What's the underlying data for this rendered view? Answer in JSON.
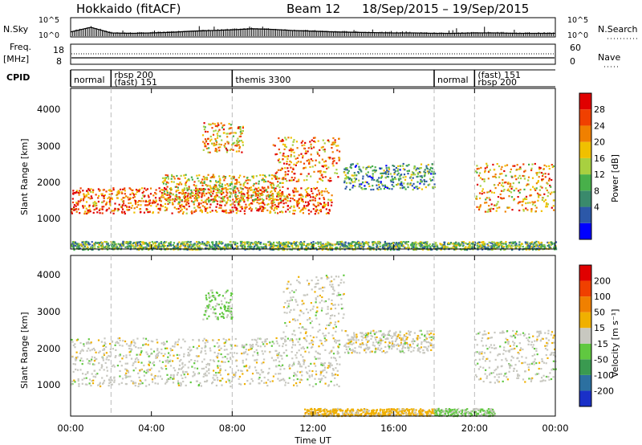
{
  "header": {
    "site": "Hokkaido (fitACF)",
    "beam": "Beam 12",
    "date_range": "18/Sep/2015 – 19/Sep/2015"
  },
  "noise_panel": {
    "left_label": "N.Sky",
    "right_label": "N.Search",
    "left_ticks": [
      "10^5",
      "10^0"
    ],
    "right_ticks": [
      "10^5",
      "10^0"
    ]
  },
  "freq_panel": {
    "left_label_1": "Freq.",
    "left_label_2": "[MHz]",
    "right_label": "Nave",
    "left_ticks": [
      "18",
      "8"
    ],
    "right_ticks": [
      "60",
      "0"
    ]
  },
  "cpid_panel": {
    "label": "CPID",
    "programs": [
      {
        "start_h": 0.0,
        "end_h": 2.0,
        "lines": [
          "normal"
        ]
      },
      {
        "start_h": 2.0,
        "end_h": 8.0,
        "lines": [
          "rbsp 200",
          "(fast) 151"
        ]
      },
      {
        "start_h": 8.0,
        "end_h": 18.0,
        "lines": [
          "themis 3300"
        ]
      },
      {
        "start_h": 18.0,
        "end_h": 20.0,
        "lines": [
          "normal"
        ]
      },
      {
        "start_h": 20.0,
        "end_h": 24.0,
        "lines": [
          "(fast) 151",
          "rbsp 200"
        ]
      }
    ]
  },
  "power_panel": {
    "ylabel": "Slant Range [km]",
    "yticks": [
      "1000",
      "2000",
      "3000",
      "4000"
    ],
    "colorbar_label": "Power [dB]",
    "colorbar_ticks": [
      "28",
      "24",
      "20",
      "16",
      "12",
      "8",
      "4"
    ],
    "colors": [
      "#0000ff",
      "#2c58a8",
      "#3a8a6c",
      "#48b04a",
      "#a8d040",
      "#f0c000",
      "#f08000",
      "#f04000",
      "#e00000"
    ]
  },
  "velocity_panel": {
    "ylabel": "Slant Range [km]",
    "yticks": [
      "1000",
      "2000",
      "3000",
      "4000"
    ],
    "colorbar_label": "Velocity [m s⁻¹]",
    "colorbar_ticks": [
      "200",
      "100",
      "50",
      "15",
      "-15",
      "-50",
      "-100",
      "-200"
    ],
    "colors": [
      "#1a30c8",
      "#2c70a0",
      "#3a9a50",
      "#60c840",
      "#c8c8c0",
      "#f0b000",
      "#f08000",
      "#f04000",
      "#e00000"
    ]
  },
  "xaxis": {
    "label": "Time UT",
    "ticks": [
      "00:00",
      "04:00",
      "08:00",
      "12:00",
      "16:00",
      "20:00",
      "00:00"
    ]
  },
  "chart_data": [
    {
      "type": "line",
      "title": "N.Sky / N.Search",
      "x": [
        0,
        1,
        2,
        3,
        4,
        5,
        6,
        7,
        8,
        9,
        10,
        11,
        12,
        13,
        14,
        15,
        16,
        17,
        18,
        19,
        20,
        21,
        22,
        23,
        24
      ],
      "series": [
        {
          "name": "N.Sky",
          "values": [
            1.2,
            2.5,
            0.9,
            0.8,
            0.9,
            1.1,
            1.4,
            1.6,
            1.8,
            2.1,
            1.9,
            1.6,
            1.4,
            1.2,
            1.1,
            1.0,
            0.9,
            0.9,
            0.8,
            0.8,
            0.9,
            0.9,
            0.8,
            0.8,
            0.8
          ]
        }
      ],
      "ylim": [
        0,
        5
      ]
    },
    {
      "type": "heatmap",
      "title": "Power [dB]",
      "xlabel": "Time UT",
      "ylabel": "Slant Range [km]",
      "xlim": [
        0,
        24
      ],
      "ylim": [
        180,
        4500
      ],
      "zlim": [
        0,
        30
      ],
      "echo_bands": [
        {
          "t_start": 0.0,
          "t_end": 12.9,
          "range_start": 1150,
          "range_end": 1850,
          "power": 24
        },
        {
          "t_start": 4.5,
          "t_end": 10.5,
          "range_start": 1450,
          "range_end": 2200,
          "power": 18
        },
        {
          "t_start": 6.5,
          "t_end": 8.5,
          "range_start": 2800,
          "range_end": 3600,
          "power": 20
        },
        {
          "t_start": 10.0,
          "t_end": 13.3,
          "range_start": 2000,
          "range_end": 3200,
          "power": 22
        },
        {
          "t_start": 13.5,
          "t_end": 18.0,
          "range_start": 1800,
          "range_end": 2500,
          "power": 10
        },
        {
          "t_start": 20.0,
          "t_end": 24.0,
          "range_start": 1200,
          "range_end": 2500,
          "power": 20
        },
        {
          "t_start": 0.0,
          "t_end": 24.0,
          "range_start": 180,
          "range_end": 400,
          "power": 12
        }
      ]
    },
    {
      "type": "heatmap",
      "title": "Velocity [m s^-1]",
      "xlabel": "Time UT",
      "ylabel": "Slant Range [km]",
      "xlim": [
        0,
        24
      ],
      "ylim": [
        180,
        4500
      ],
      "zlim": [
        -200,
        200
      ],
      "echo_bands": [
        {
          "t_start": 0.0,
          "t_end": 13.3,
          "range_start": 1000,
          "range_end": 2300,
          "velocity": 0
        },
        {
          "t_start": 6.5,
          "t_end": 8.0,
          "range_start": 2800,
          "range_end": 3600,
          "velocity": -30
        },
        {
          "t_start": 10.5,
          "t_end": 13.5,
          "range_start": 2200,
          "range_end": 4000,
          "velocity": 0
        },
        {
          "t_start": 13.5,
          "t_end": 18.0,
          "range_start": 1900,
          "range_end": 2500,
          "velocity": 0
        },
        {
          "t_start": 20.0,
          "t_end": 24.0,
          "range_start": 1100,
          "range_end": 2500,
          "velocity": 0
        },
        {
          "t_start": 11.5,
          "t_end": 18.0,
          "range_start": 200,
          "range_end": 400,
          "velocity": 40
        },
        {
          "t_start": 18.0,
          "t_end": 21.0,
          "range_start": 200,
          "range_end": 400,
          "velocity": -30
        }
      ]
    }
  ]
}
